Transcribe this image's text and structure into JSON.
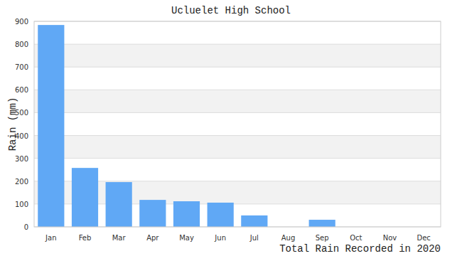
{
  "chart_data": {
    "type": "bar",
    "title": "Ucluelet High School",
    "y_label": "Rain (mm)",
    "x_label": "Total Rain Recorded in 2020",
    "categories": [
      "Jan",
      "Feb",
      "Mar",
      "Apr",
      "May",
      "Jun",
      "Jul",
      "Aug",
      "Sep",
      "Oct",
      "Nov",
      "Dec"
    ],
    "values": [
      884,
      258,
      196,
      118,
      112,
      106,
      50,
      0,
      31,
      0,
      0,
      0
    ],
    "color": "#60a8f5",
    "ylim": [
      0,
      900
    ],
    "yticks": [
      0,
      100,
      200,
      300,
      400,
      500,
      600,
      700,
      800,
      900
    ],
    "grid": true
  }
}
